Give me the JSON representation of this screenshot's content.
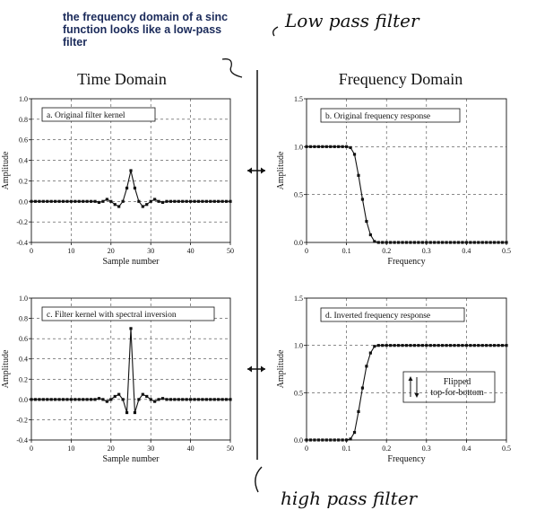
{
  "annotations": {
    "note_lines": [
      "the frequency domain of a sinc",
      "function looks like a low-pass",
      "filter"
    ],
    "top_handwriting": "Low pass filter",
    "bottom_handwriting": "high pass filter"
  },
  "headers": {
    "time": "Time Domain",
    "freq": "Frequency Domain"
  },
  "flip_label": [
    "Flipped",
    "top-for-bottom"
  ],
  "chart_data": [
    {
      "type": "line",
      "panel": "a. Original filter kernel",
      "xlabel": "Sample number",
      "ylabel": "Amplitude",
      "xlim": [
        0,
        50
      ],
      "ylim": [
        -0.4,
        1.0
      ],
      "xticks": [
        "0",
        "10",
        "20",
        "30",
        "40",
        "50"
      ],
      "yticks": [
        "-0.4",
        "-0.2",
        "0.0",
        "0.2",
        "0.4",
        "0.6",
        "0.8",
        "1.0"
      ],
      "x": [
        0,
        1,
        2,
        3,
        4,
        5,
        6,
        7,
        8,
        9,
        10,
        11,
        12,
        13,
        14,
        15,
        16,
        17,
        18,
        19,
        20,
        21,
        22,
        23,
        24,
        25,
        26,
        27,
        28,
        29,
        30,
        31,
        32,
        33,
        34,
        35,
        36,
        37,
        38,
        39,
        40,
        41,
        42,
        43,
        44,
        45,
        46,
        47,
        48,
        49,
        50
      ],
      "y": [
        0,
        0,
        0,
        0,
        0,
        0,
        0,
        0,
        0,
        0,
        0,
        0,
        0,
        0,
        0,
        0,
        0,
        -0.01,
        0.0,
        0.02,
        0.0,
        -0.03,
        -0.05,
        0.0,
        0.13,
        0.3,
        0.13,
        0.0,
        -0.05,
        -0.03,
        0.0,
        0.02,
        0.0,
        -0.01,
        0,
        0,
        0,
        0,
        0,
        0,
        0,
        0,
        0,
        0,
        0,
        0,
        0,
        0,
        0,
        0,
        0
      ]
    },
    {
      "type": "line",
      "panel": "b. Original frequency response",
      "xlabel": "Frequency",
      "ylabel": "Amplitude",
      "xlim": [
        0,
        0.5
      ],
      "ylim": [
        0,
        1.5
      ],
      "xticks": [
        "0",
        "0.1",
        "0.2",
        "0.3",
        "0.4",
        "0.5"
      ],
      "yticks": [
        "0.0",
        "0.5",
        "1.0",
        "1.5"
      ],
      "x": [
        0,
        0.01,
        0.02,
        0.03,
        0.04,
        0.05,
        0.06,
        0.07,
        0.08,
        0.09,
        0.1,
        0.11,
        0.12,
        0.13,
        0.14,
        0.15,
        0.16,
        0.17,
        0.18,
        0.19,
        0.2,
        0.21,
        0.22,
        0.23,
        0.24,
        0.25,
        0.26,
        0.27,
        0.28,
        0.29,
        0.3,
        0.31,
        0.32,
        0.33,
        0.34,
        0.35,
        0.36,
        0.37,
        0.38,
        0.39,
        0.4,
        0.41,
        0.42,
        0.43,
        0.44,
        0.45,
        0.46,
        0.47,
        0.48,
        0.49,
        0.5
      ],
      "y": [
        1,
        1,
        1,
        1,
        1,
        1,
        1,
        1,
        1,
        1,
        1,
        0.99,
        0.92,
        0.7,
        0.45,
        0.22,
        0.08,
        0.01,
        0,
        0,
        0,
        0,
        0,
        0,
        0,
        0,
        0,
        0,
        0,
        0,
        0,
        0,
        0,
        0,
        0,
        0,
        0,
        0,
        0,
        0,
        0,
        0,
        0,
        0,
        0,
        0,
        0,
        0,
        0,
        0,
        0
      ]
    },
    {
      "type": "line",
      "panel": "c. Filter kernel with spectral inversion",
      "xlabel": "Sample number",
      "ylabel": "Amplitude",
      "xlim": [
        0,
        50
      ],
      "ylim": [
        -0.4,
        1.0
      ],
      "xticks": [
        "0",
        "10",
        "20",
        "30",
        "40",
        "50"
      ],
      "yticks": [
        "-0.4",
        "-0.2",
        "0.0",
        "0.2",
        "0.4",
        "0.6",
        "0.8",
        "1.0"
      ],
      "x": [
        0,
        1,
        2,
        3,
        4,
        5,
        6,
        7,
        8,
        9,
        10,
        11,
        12,
        13,
        14,
        15,
        16,
        17,
        18,
        19,
        20,
        21,
        22,
        23,
        24,
        25,
        26,
        27,
        28,
        29,
        30,
        31,
        32,
        33,
        34,
        35,
        36,
        37,
        38,
        39,
        40,
        41,
        42,
        43,
        44,
        45,
        46,
        47,
        48,
        49,
        50
      ],
      "y": [
        0,
        0,
        0,
        0,
        0,
        0,
        0,
        0,
        0,
        0,
        0,
        0,
        0,
        0,
        0,
        0,
        0,
        0.01,
        0.0,
        -0.02,
        0.0,
        0.03,
        0.05,
        0.0,
        -0.13,
        0.7,
        -0.13,
        0.0,
        0.05,
        0.03,
        0.0,
        -0.02,
        0.0,
        0.01,
        0,
        0,
        0,
        0,
        0,
        0,
        0,
        0,
        0,
        0,
        0,
        0,
        0,
        0,
        0,
        0,
        0
      ]
    },
    {
      "type": "line",
      "panel": "d. Inverted frequency response",
      "xlabel": "Frequency",
      "ylabel": "Amplitude",
      "xlim": [
        0,
        0.5
      ],
      "ylim": [
        0,
        1.5
      ],
      "xticks": [
        "0",
        "0.1",
        "0.2",
        "0.3",
        "0.4",
        "0.5"
      ],
      "yticks": [
        "0.0",
        "0.5",
        "1.0",
        "1.5"
      ],
      "x": [
        0,
        0.01,
        0.02,
        0.03,
        0.04,
        0.05,
        0.06,
        0.07,
        0.08,
        0.09,
        0.1,
        0.11,
        0.12,
        0.13,
        0.14,
        0.15,
        0.16,
        0.17,
        0.18,
        0.19,
        0.2,
        0.21,
        0.22,
        0.23,
        0.24,
        0.25,
        0.26,
        0.27,
        0.28,
        0.29,
        0.3,
        0.31,
        0.32,
        0.33,
        0.34,
        0.35,
        0.36,
        0.37,
        0.38,
        0.39,
        0.4,
        0.41,
        0.42,
        0.43,
        0.44,
        0.45,
        0.46,
        0.47,
        0.48,
        0.49,
        0.5
      ],
      "y": [
        0,
        0,
        0,
        0,
        0,
        0,
        0,
        0,
        0,
        0,
        0,
        0.01,
        0.08,
        0.3,
        0.55,
        0.78,
        0.92,
        0.99,
        1,
        1,
        1,
        1,
        1,
        1,
        1,
        1,
        1,
        1,
        1,
        1,
        1,
        1,
        1,
        1,
        1,
        1,
        1,
        1,
        1,
        1,
        1,
        1,
        1,
        1,
        1,
        1,
        1,
        1,
        1,
        1,
        1
      ]
    }
  ]
}
